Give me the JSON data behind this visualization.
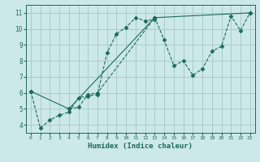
{
  "title": "",
  "xlabel": "Humidex (Indice chaleur)",
  "ylabel": "",
  "background_color": "#cce8e8",
  "grid_color": "#aacccc",
  "line_color": "#1a6b5a",
  "xlim": [
    -0.5,
    23.5
  ],
  "ylim": [
    3.5,
    11.5
  ],
  "xticks": [
    0,
    1,
    2,
    3,
    4,
    5,
    6,
    7,
    8,
    9,
    10,
    11,
    12,
    13,
    14,
    15,
    16,
    17,
    18,
    19,
    20,
    21,
    22,
    23
  ],
  "yticks": [
    4,
    5,
    6,
    7,
    8,
    9,
    10,
    11
  ],
  "series1_x": [
    0,
    1,
    2,
    3,
    4,
    5,
    6,
    7,
    8,
    9,
    10,
    11,
    12,
    13
  ],
  "series1_y": [
    6.1,
    3.8,
    4.3,
    4.6,
    4.8,
    5.7,
    5.8,
    5.9,
    8.5,
    9.7,
    10.1,
    10.7,
    10.5,
    10.6
  ],
  "series2_x": [
    4,
    5,
    6,
    7,
    13,
    14,
    15,
    16,
    17,
    18,
    19,
    20,
    21,
    22,
    23
  ],
  "series2_y": [
    5.0,
    5.1,
    5.9,
    6.0,
    10.7,
    9.3,
    7.7,
    8.0,
    7.1,
    7.5,
    8.6,
    8.9,
    10.8,
    9.9,
    11.0
  ],
  "series3_x": [
    0,
    4,
    13,
    23
  ],
  "series3_y": [
    6.1,
    5.0,
    10.7,
    11.0
  ],
  "marker": "D",
  "marker_size": 2.5
}
